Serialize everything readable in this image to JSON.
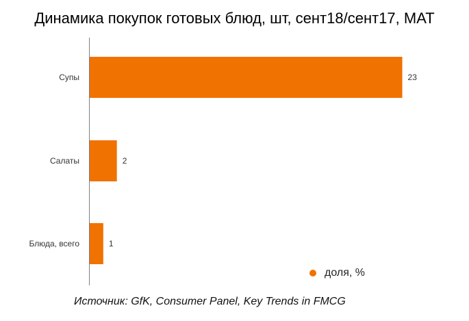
{
  "chart_data": {
    "type": "bar",
    "orientation": "horizontal",
    "title": "Динамика покупок готовых блюд, шт, сент18/сент17, MAT",
    "categories": [
      "Супы",
      "Салаты",
      "Блюда, всего"
    ],
    "series": [
      {
        "name": "доля, %",
        "values": [
          23,
          2,
          1
        ]
      }
    ],
    "xlim": [
      0,
      25
    ],
    "grid": false,
    "legend_position": "bottom-right",
    "bar_color": "#F07200",
    "source": "Источник: GfK, Consumer Panel, Key Trends in FMCG"
  }
}
